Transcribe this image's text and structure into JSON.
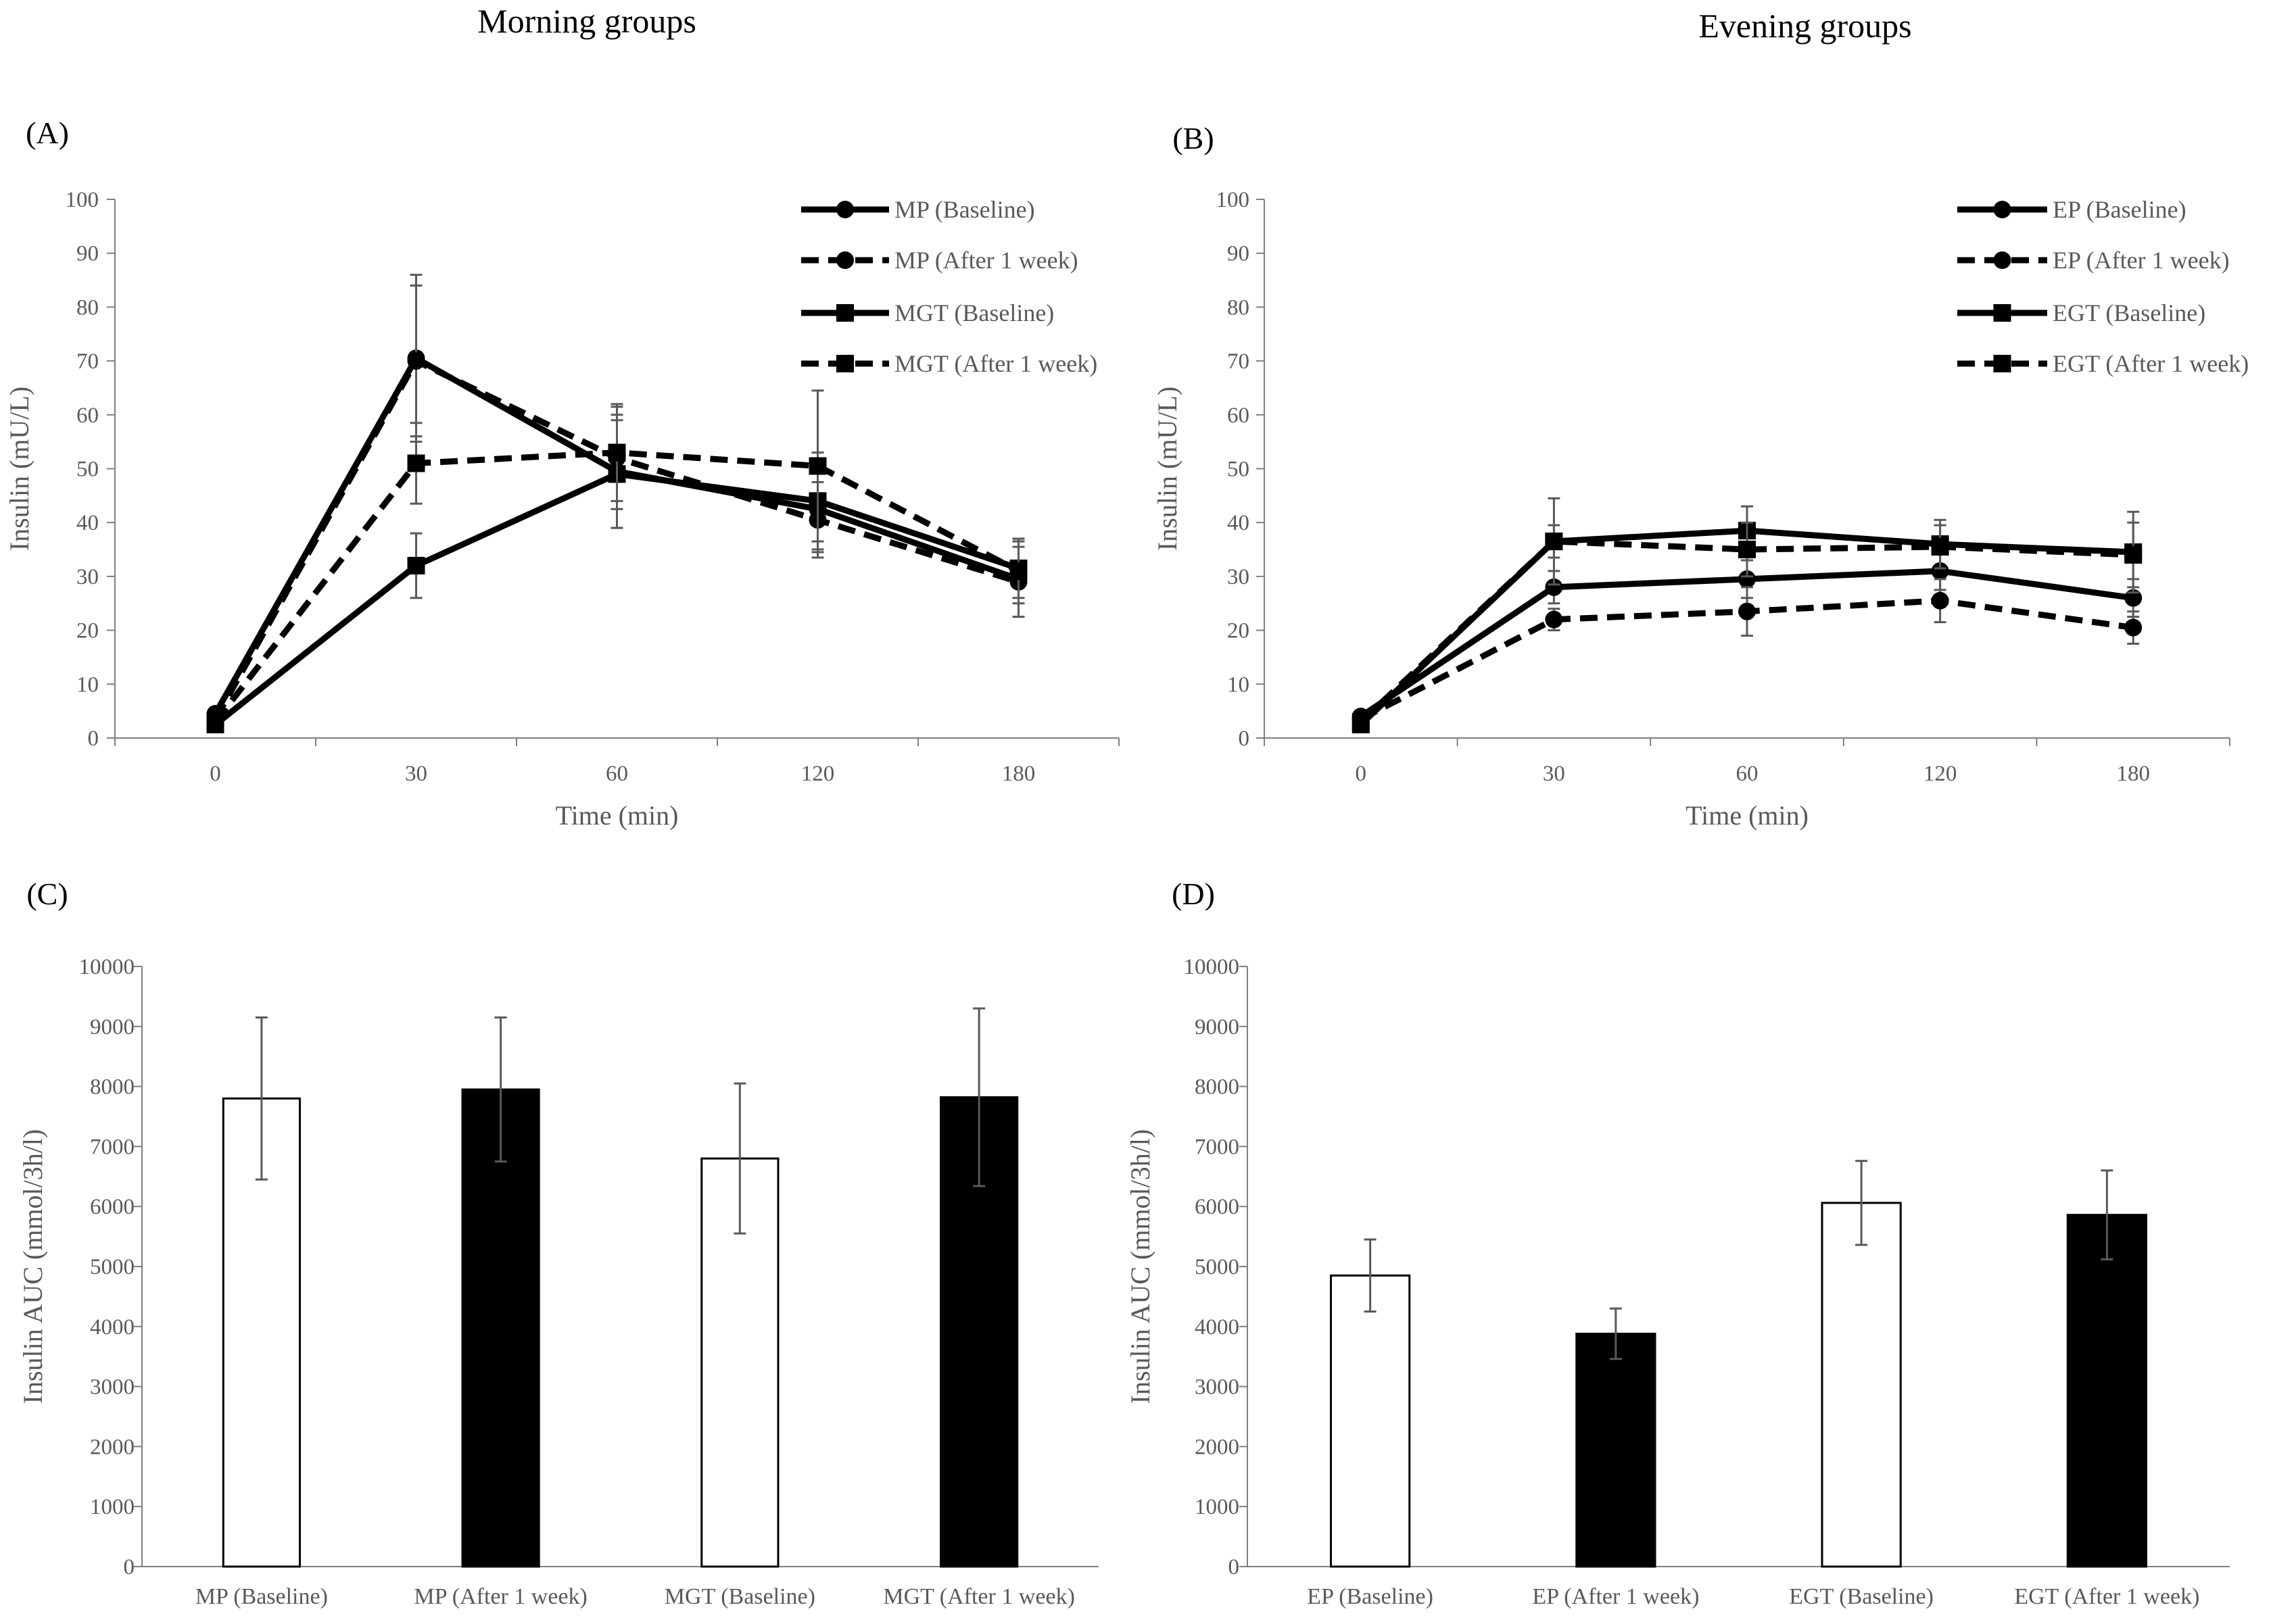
{
  "headings": {
    "morning": "Morning groups",
    "evening": "Evening groups"
  },
  "colors": {
    "line": "#000000",
    "axis": "#7f7f7f",
    "text": "#595959",
    "error_bar": "#595959",
    "bar_open": "#ffffff",
    "bar_filled": "#000000"
  },
  "chart_data": [
    {
      "id": "A",
      "panel_label": "(A)",
      "type": "line",
      "title": "",
      "xlabel": "Time (min)",
      "ylabel": "Insulin (mU/L)",
      "categories": [
        "0",
        "30",
        "60",
        "120",
        "180"
      ],
      "ylim": [
        0,
        100
      ],
      "yticks": [
        0,
        10,
        20,
        30,
        40,
        50,
        60,
        70,
        80,
        90,
        100
      ],
      "legend": "top-right",
      "grid": false,
      "series": [
        {
          "name": "MP (Baseline)",
          "marker": "circle",
          "dash": false,
          "values": [
            4.5,
            70.5,
            49.5,
            42.5,
            29.5
          ],
          "err": [
            1.0,
            15.5,
            10.5,
            8.0,
            7.0
          ]
        },
        {
          "name": "MP (After 1 week)",
          "marker": "circle",
          "dash": true,
          "values": [
            3.5,
            70.0,
            52.0,
            40.5,
            29.0
          ],
          "err": [
            1.0,
            14.0,
            9.5,
            7.0,
            6.5
          ]
        },
        {
          "name": "MGT (Baseline)",
          "marker": "square",
          "dash": false,
          "values": [
            2.5,
            32.0,
            49.0,
            44.0,
            31.5
          ],
          "err": [
            0.8,
            6.0,
            10.0,
            9.0,
            5.5
          ]
        },
        {
          "name": "MGT (After 1 week)",
          "marker": "square",
          "dash": true,
          "values": [
            3.0,
            51.0,
            53.0,
            50.5,
            31.0
          ],
          "err": [
            0.8,
            7.5,
            9.0,
            14.0,
            6.0
          ]
        }
      ]
    },
    {
      "id": "B",
      "panel_label": "(B)",
      "type": "line",
      "title": "",
      "xlabel": "Time (min)",
      "ylabel": "Insulin (mU/L)",
      "categories": [
        "0",
        "30",
        "60",
        "120",
        "180"
      ],
      "ylim": [
        0,
        100
      ],
      "yticks": [
        0,
        10,
        20,
        30,
        40,
        50,
        60,
        70,
        80,
        90,
        100
      ],
      "legend": "top-right",
      "grid": false,
      "series": [
        {
          "name": "EP (Baseline)",
          "marker": "circle",
          "dash": false,
          "values": [
            4.0,
            28.0,
            29.5,
            31.0,
            26.0
          ],
          "err": [
            0.8,
            3.0,
            3.5,
            3.5,
            3.5
          ]
        },
        {
          "name": "EP (After 1 week)",
          "marker": "circle",
          "dash": true,
          "values": [
            3.5,
            22.0,
            23.5,
            25.5,
            20.5
          ],
          "err": [
            0.8,
            2.0,
            4.5,
            4.0,
            3.0
          ]
        },
        {
          "name": "EGT (Baseline)",
          "marker": "square",
          "dash": false,
          "values": [
            2.5,
            36.5,
            38.5,
            36.0,
            34.5
          ],
          "err": [
            0.8,
            8.0,
            4.5,
            4.5,
            7.5
          ]
        },
        {
          "name": "EGT (After 1 week)",
          "marker": "square",
          "dash": true,
          "values": [
            3.0,
            36.5,
            35.0,
            35.5,
            34.0
          ],
          "err": [
            0.8,
            3.0,
            5.0,
            4.0,
            6.0
          ]
        }
      ]
    },
    {
      "id": "C",
      "panel_label": "(C)",
      "type": "bar",
      "title": "",
      "xlabel": "",
      "ylabel": "Insulin AUC (mmol/3h/l)",
      "categories": [
        "MP (Baseline)",
        "MP (After 1 week)",
        "MGT (Baseline)",
        "MGT (After 1 week)"
      ],
      "values": [
        7800,
        7950,
        6800,
        7820
      ],
      "err": [
        1350,
        1200,
        1250,
        1480
      ],
      "fill": [
        "open",
        "filled",
        "open",
        "filled"
      ],
      "ylim": [
        0,
        10000
      ],
      "yticks": [
        0,
        1000,
        2000,
        3000,
        4000,
        5000,
        6000,
        7000,
        8000,
        9000,
        10000
      ],
      "grid": false
    },
    {
      "id": "D",
      "panel_label": "(D)",
      "type": "bar",
      "title": "",
      "xlabel": "",
      "ylabel": "Insulin AUC (mmol/3h/l)",
      "categories": [
        "EP (Baseline)",
        "EP (After 1 week)",
        "EGT (Baseline)",
        "EGT (After 1 week)"
      ],
      "values": [
        4850,
        3880,
        6060,
        5860
      ],
      "err": [
        600,
        420,
        700,
        740
      ],
      "fill": [
        "open",
        "filled",
        "open",
        "filled"
      ],
      "ylim": [
        0,
        10000
      ],
      "yticks": [
        0,
        1000,
        2000,
        3000,
        4000,
        5000,
        6000,
        7000,
        8000,
        9000,
        10000
      ],
      "grid": false
    }
  ]
}
